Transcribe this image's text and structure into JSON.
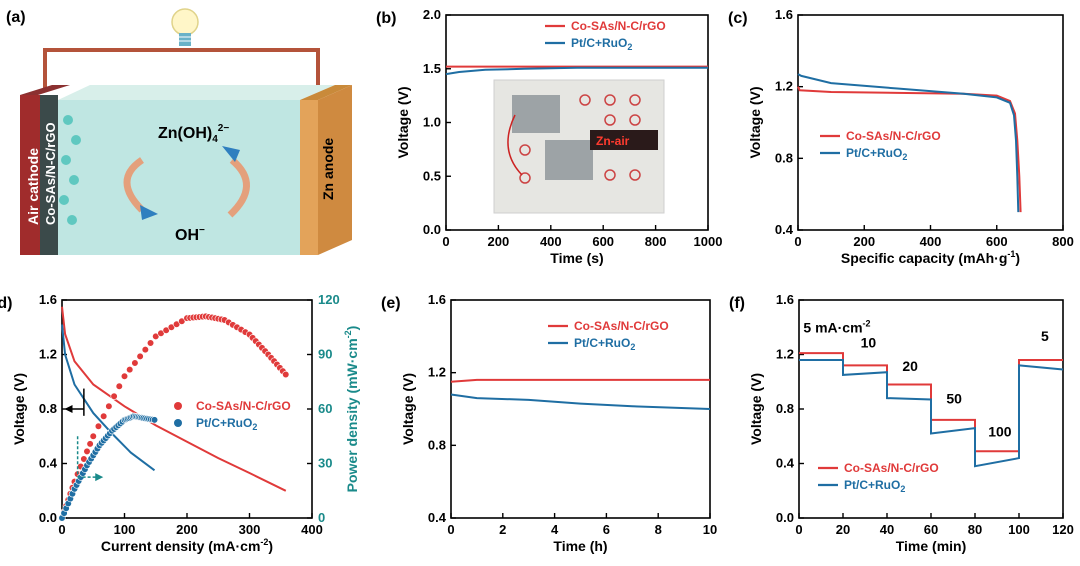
{
  "colors": {
    "red": "#e03a3a",
    "blue": "#1f6ea3",
    "teal": "#1a8a8a"
  },
  "panel_a": {
    "label": "(a)",
    "cathode_label_1": "Air cathode",
    "cathode_label_2": "Co-SAs/N-C/rGO",
    "anode_label": "Zn anode",
    "species_top": "Zn(OH)",
    "species_top_sub": "4",
    "species_top_sup": "2−",
    "species_bottom": "OH",
    "species_bottom_sup": "−"
  },
  "chart_data": [
    {
      "id": "b",
      "label": "(b)",
      "type": "line",
      "xlabel": "Time (s)",
      "ylabel": "Voltage (V)",
      "xlim": [
        0,
        1000
      ],
      "ylim": [
        0,
        2.0
      ],
      "xticks": [
        0,
        200,
        400,
        600,
        800,
        1000
      ],
      "yticks": [
        0.0,
        0.5,
        1.0,
        1.5,
        2.0
      ],
      "legend": "top-right",
      "inset_text": "Zn-air",
      "series": [
        {
          "name": "Co-SAs/N-C/rGO",
          "x": [
            0,
            100,
            300,
            500,
            700,
            1000
          ],
          "y": [
            1.52,
            1.52,
            1.52,
            1.52,
            1.52,
            1.52
          ]
        },
        {
          "name": "Pt/C+RuO2",
          "x": [
            0,
            50,
            150,
            300,
            500,
            700,
            1000
          ],
          "y": [
            1.45,
            1.47,
            1.49,
            1.5,
            1.51,
            1.51,
            1.51
          ]
        }
      ]
    },
    {
      "id": "c",
      "label": "(c)",
      "type": "line",
      "xlabel": "Specific capacity (mAh·g",
      "xlabel_sup": "-1",
      "xlabel_end": ")",
      "ylabel": "Voltage (V)",
      "xlim": [
        0,
        800
      ],
      "ylim": [
        0.4,
        1.6
      ],
      "xticks": [
        0,
        200,
        400,
        600,
        800
      ],
      "yticks": [
        0.4,
        0.8,
        1.2,
        1.6
      ],
      "legend": "center-left",
      "series": [
        {
          "name": "Co-SAs/N-C/rGO",
          "x": [
            0,
            5,
            100,
            300,
            500,
            600,
            640,
            655,
            662,
            668,
            672
          ],
          "y": [
            1.2,
            1.18,
            1.17,
            1.165,
            1.16,
            1.15,
            1.12,
            1.05,
            0.9,
            0.7,
            0.5
          ]
        },
        {
          "name": "Pt/C+RuO2",
          "x": [
            0,
            10,
            100,
            300,
            500,
            600,
            640,
            652,
            658,
            662,
            665
          ],
          "y": [
            1.27,
            1.26,
            1.22,
            1.19,
            1.16,
            1.14,
            1.11,
            1.04,
            0.9,
            0.7,
            0.5
          ]
        }
      ]
    },
    {
      "id": "d",
      "label": "(d)",
      "type": "line",
      "xlabel": "Current density (mA·cm",
      "xlabel_sup": "-2",
      "xlabel_end": ")",
      "ylabel": "Voltage (V)",
      "y2label": "Power density (mW·cm",
      "y2label_sup": "-2",
      "y2label_end": ")",
      "xlim": [
        0,
        400
      ],
      "ylim": [
        0,
        1.6
      ],
      "y2lim": [
        0,
        120
      ],
      "xticks": [
        0,
        100,
        200,
        300,
        400
      ],
      "yticks": [
        0.0,
        0.4,
        0.8,
        1.2,
        1.6
      ],
      "y2ticks": [
        0,
        30,
        60,
        90,
        120
      ],
      "legend": "center-right",
      "series": [
        {
          "name": "Co-SAs/N-C/rGO",
          "kind": "voltage",
          "x": [
            0,
            5,
            20,
            50,
            100,
            150,
            200,
            250,
            300,
            358
          ],
          "y": [
            1.55,
            1.35,
            1.15,
            0.98,
            0.82,
            0.68,
            0.56,
            0.44,
            0.33,
            0.2
          ]
        },
        {
          "name": "Pt/C+RuO2",
          "kind": "voltage",
          "x": [
            0,
            5,
            20,
            50,
            80,
            110,
            148
          ],
          "y": [
            1.42,
            1.2,
            0.98,
            0.77,
            0.62,
            0.48,
            0.35
          ]
        },
        {
          "name": "Co-SAs/N-C/rGO",
          "kind": "power",
          "x": [
            0,
            20,
            50,
            100,
            150,
            200,
            230,
            260,
            300,
            330,
            358
          ],
          "y": [
            0,
            20,
            45,
            78,
            100,
            110,
            111,
            109,
            101,
            90,
            79
          ]
        },
        {
          "name": "Pt/C+RuO2",
          "kind": "power",
          "x": [
            0,
            20,
            40,
            60,
            80,
            100,
            115,
            130,
            148
          ],
          "y": [
            0,
            16,
            29,
            40,
            48,
            54,
            56,
            55,
            54
          ]
        }
      ]
    },
    {
      "id": "e",
      "label": "(e)",
      "type": "line",
      "xlabel": "Time (h)",
      "ylabel": "Voltage (V)",
      "xlim": [
        0,
        10
      ],
      "ylim": [
        0.4,
        1.6
      ],
      "xticks": [
        0,
        2,
        4,
        6,
        8,
        10
      ],
      "yticks": [
        0.4,
        0.8,
        1.2,
        1.6
      ],
      "legend": "top-right",
      "series": [
        {
          "name": "Co-SAs/N-C/rGO",
          "x": [
            0,
            1,
            3,
            5,
            7,
            10
          ],
          "y": [
            1.15,
            1.16,
            1.16,
            1.16,
            1.16,
            1.16
          ]
        },
        {
          "name": "Pt/C+RuO2",
          "x": [
            0,
            1,
            3,
            5,
            7,
            10
          ],
          "y": [
            1.08,
            1.06,
            1.05,
            1.03,
            1.015,
            1.0
          ]
        }
      ]
    },
    {
      "id": "f",
      "label": "(f)",
      "type": "line",
      "xlabel": "Time (min)",
      "ylabel": "Voltage (V)",
      "xlim": [
        0,
        120
      ],
      "ylim": [
        0.0,
        1.6
      ],
      "xticks": [
        0,
        20,
        40,
        60,
        80,
        100,
        120
      ],
      "yticks": [
        0.0,
        0.4,
        0.8,
        1.2,
        1.6
      ],
      "legend": "bottom-left",
      "annotations": [
        {
          "text": "5 mA·cm",
          "sup": "-2",
          "x": 2,
          "y": 1.36
        },
        {
          "text": "10",
          "x": 28,
          "y": 1.25
        },
        {
          "text": "20",
          "x": 47,
          "y": 1.08
        },
        {
          "text": "50",
          "x": 67,
          "y": 0.84
        },
        {
          "text": "100",
          "x": 86,
          "y": 0.6
        },
        {
          "text": "5",
          "x": 110,
          "y": 1.3
        }
      ],
      "series": [
        {
          "name": "Co-SAs/N-C/rGO",
          "x": [
            0,
            20,
            20,
            40,
            40,
            60,
            60,
            80,
            80,
            100,
            100,
            120
          ],
          "y": [
            1.21,
            1.21,
            1.12,
            1.12,
            0.98,
            0.98,
            0.72,
            0.72,
            0.49,
            0.49,
            1.16,
            1.16
          ]
        },
        {
          "name": "Pt/C+RuO2",
          "x": [
            0,
            20,
            20,
            40,
            40,
            60,
            60,
            80,
            80,
            100,
            100,
            120
          ],
          "y": [
            1.16,
            1.16,
            1.05,
            1.07,
            0.88,
            0.87,
            0.62,
            0.66,
            0.38,
            0.44,
            1.12,
            1.09
          ]
        }
      ]
    }
  ]
}
